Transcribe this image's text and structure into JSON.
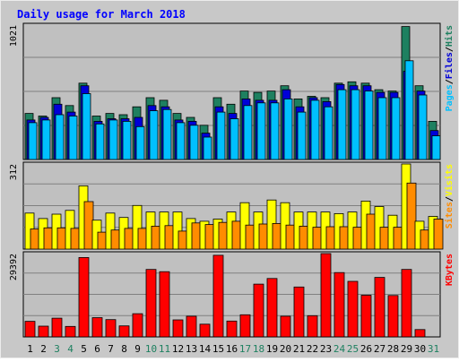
{
  "chart_data": {
    "type": "bar",
    "title": "Daily usage for March 2018",
    "categories": [
      "1",
      "2",
      "3",
      "4",
      "5",
      "6",
      "7",
      "8",
      "9",
      "10",
      "11",
      "12",
      "13",
      "14",
      "15",
      "16",
      "17",
      "18",
      "19",
      "20",
      "21",
      "22",
      "23",
      "24",
      "25",
      "26",
      "27",
      "28",
      "29",
      "30",
      "31"
    ],
    "weekend_categories": [
      "3",
      "4",
      "10",
      "11",
      "17",
      "18",
      "24",
      "25",
      "31"
    ],
    "panels": [
      {
        "id": "hits",
        "max_label": "1021",
        "ymax": 1021,
        "legend": [
          "Pages",
          "Files",
          "Hits"
        ],
        "series": [
          {
            "name": "Hits",
            "color": "#1e8060",
            "values": [
              350,
              330,
              470,
              410,
              580,
              330,
              350,
              340,
              400,
              470,
              450,
              350,
              320,
              260,
              470,
              420,
              520,
              510,
              520,
              560,
              460,
              480,
              470,
              580,
              590,
              580,
              530,
              520,
              1010,
              560,
              290
            ]
          },
          {
            "name": "Files",
            "color": "#0000d8",
            "values": [
              300,
              320,
              420,
              360,
              560,
              290,
              310,
              310,
              320,
              410,
              400,
              300,
              290,
              200,
              400,
              350,
              460,
              450,
              450,
              530,
              400,
              470,
              440,
              570,
              560,
              560,
              510,
              510,
              670,
              520,
              220
            ]
          },
          {
            "name": "Pages",
            "color": "#00c0ff",
            "values": [
              280,
              300,
              340,
              330,
              500,
              270,
              300,
              290,
              250,
              370,
              380,
              280,
              260,
              170,
              360,
              310,
              410,
              430,
              430,
              460,
              360,
              450,
              400,
              530,
              530,
              520,
              470,
              470,
              750,
              490,
              180
            ]
          }
        ]
      },
      {
        "id": "visits",
        "max_label": "312",
        "ymax": 312,
        "legend": [
          "Sites",
          "Visits"
        ],
        "series": [
          {
            "name": "Visits",
            "color": "#ffff00",
            "values": [
              132,
              112,
              128,
              142,
              232,
              106,
              132,
              116,
              160,
              136,
              136,
              136,
              112,
              102,
              110,
              136,
              170,
              136,
              180,
              170,
              136,
              136,
              136,
              130,
              136,
              176,
              156,
              124,
              312,
              102,
              120
            ]
          },
          {
            "name": "Sites",
            "color": "#ff8c00",
            "values": [
              74,
              78,
              78,
              76,
              174,
              62,
              70,
              76,
              76,
              84,
              86,
              66,
              96,
              90,
              98,
              102,
              88,
              92,
              94,
              88,
              84,
              80,
              82,
              82,
              80,
              128,
              80,
              80,
              242,
              70,
              110
            ]
          }
        ]
      },
      {
        "id": "kbytes",
        "max_label": "29392",
        "ymax": 29392,
        "legend": [
          "KBytes"
        ],
        "series": [
          {
            "name": "KBytes",
            "color": "#ff0000",
            "values": [
              5500,
              3800,
              6600,
              3700,
              28000,
              6800,
              6100,
              3900,
              8200,
              23800,
              23000,
              6000,
              7300,
              4500,
              28800,
              5600,
              7800,
              18600,
              20600,
              7300,
              17600,
              7500,
              29392,
              22700,
              19600,
              14700,
              21000,
              14600,
              23800,
              2600,
              0
            ]
          }
        ]
      }
    ]
  }
}
